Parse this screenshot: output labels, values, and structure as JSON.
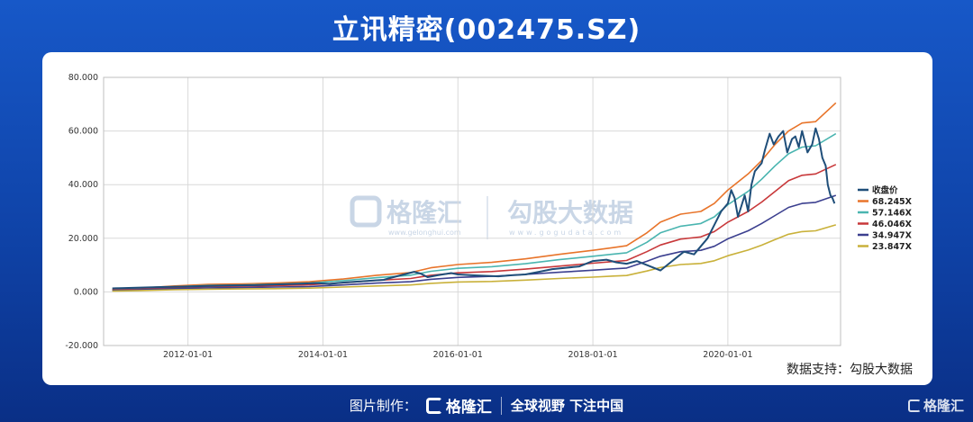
{
  "title": "立讯精密(002475.SZ)",
  "watermark": {
    "brand1": "格隆汇",
    "brand1_url": "www.gelonghui.com",
    "brand2": "勾股大数据",
    "brand2_url": "www.gogudata.com"
  },
  "support_text": "数据支持：勾股大数据",
  "footer": {
    "made_by": "图片制作：",
    "logo": "格隆汇",
    "slogan": "全球视野 下注中国"
  },
  "corner_logo": "格隆汇",
  "chart_data": {
    "type": "line",
    "xlim": [
      2010.75,
      2021.67
    ],
    "ylim": [
      -20,
      80
    ],
    "yticks": [
      -20,
      0,
      20,
      40,
      60,
      80
    ],
    "ytick_labels": [
      "-20.000",
      "0.000",
      "20.000",
      "40.000",
      "60.000",
      "80.000"
    ],
    "xticks": [
      2012.0,
      2014.0,
      2016.0,
      2018.0,
      2020.0
    ],
    "xtick_labels": [
      "2012-01-01",
      "2014-01-01",
      "2016-01-01",
      "2018-01-01",
      "2020-01-01"
    ],
    "grid": true,
    "legend_position": "right",
    "series": [
      {
        "name": "收盘价",
        "color": "#1f4e79",
        "width": 2,
        "x": [
          2010.88,
          2011.0,
          2011.3,
          2011.6,
          2012.0,
          2012.3,
          2012.6,
          2013.0,
          2013.3,
          2013.6,
          2013.9,
          2014.1,
          2014.3,
          2014.6,
          2014.9,
          2015.0,
          2015.2,
          2015.35,
          2015.45,
          2015.55,
          2015.7,
          2015.9,
          2016.0,
          2016.2,
          2016.4,
          2016.6,
          2016.8,
          2017.0,
          2017.2,
          2017.4,
          2017.6,
          2017.8,
          2017.9,
          2018.0,
          2018.2,
          2018.35,
          2018.5,
          2018.65,
          2018.8,
          2018.9,
          2019.0,
          2019.1,
          2019.25,
          2019.35,
          2019.5,
          2019.6,
          2019.7,
          2019.8,
          2019.9,
          2020.0,
          2020.05,
          2020.1,
          2020.15,
          2020.2,
          2020.25,
          2020.3,
          2020.35,
          2020.4,
          2020.5,
          2020.55,
          2020.62,
          2020.68,
          2020.75,
          2020.82,
          2020.88,
          2020.95,
          2021.0,
          2021.05,
          2021.1,
          2021.18,
          2021.25,
          2021.3,
          2021.35,
          2021.4,
          2021.45,
          2021.48,
          2021.52,
          2021.55,
          2021.58
        ],
        "y": [
          1.3,
          1.4,
          1.6,
          1.8,
          2.0,
          2.2,
          2.4,
          2.5,
          2.8,
          3.0,
          3.3,
          3.0,
          3.5,
          4.0,
          4.5,
          5.2,
          6.5,
          7.5,
          6.8,
          5.5,
          6.2,
          7.0,
          6.5,
          6.2,
          6.0,
          5.8,
          6.2,
          6.5,
          7.5,
          8.5,
          9.0,
          9.5,
          10.5,
          11.5,
          12.0,
          11.0,
          10.5,
          11.5,
          10.0,
          9.0,
          8.0,
          10.0,
          13.0,
          15.0,
          14.0,
          17.0,
          20.0,
          25.0,
          30.0,
          33.0,
          38.0,
          35.0,
          28.0,
          32.0,
          36.0,
          30.0,
          40.0,
          45.0,
          48.0,
          53.0,
          59.0,
          55.0,
          58.0,
          60.0,
          52.0,
          57.0,
          58.0,
          54.0,
          60.0,
          52.0,
          55.0,
          61.0,
          57.0,
          50.0,
          47.0,
          40.0,
          36.0,
          35.0,
          33.0
        ]
      },
      {
        "name": "68.245X",
        "color": "#e8742a",
        "width": 1.6,
        "x": [
          2010.88,
          2011.3,
          2011.8,
          2012.3,
          2012.8,
          2013.3,
          2013.8,
          2014.3,
          2014.8,
          2015.3,
          2015.6,
          2016.0,
          2016.5,
          2017.0,
          2017.5,
          2018.0,
          2018.3,
          2018.5,
          2018.8,
          2019.0,
          2019.3,
          2019.6,
          2019.8,
          2020.0,
          2020.3,
          2020.5,
          2020.7,
          2020.9,
          2021.1,
          2021.3,
          2021.6
        ],
        "y": [
          1.0,
          1.4,
          2.2,
          2.8,
          3.0,
          3.3,
          3.8,
          4.8,
          6.2,
          7.2,
          9.0,
          10.2,
          11.0,
          12.3,
          14.0,
          15.5,
          16.5,
          17.2,
          22.0,
          26.0,
          29.0,
          30.0,
          33.0,
          38.0,
          44.0,
          49.0,
          55.0,
          60.0,
          63.0,
          63.5,
          70.5
        ]
      },
      {
        "name": "57.146X",
        "color": "#4ab5b0",
        "width": 1.6,
        "x": [
          2010.88,
          2011.3,
          2011.8,
          2012.3,
          2012.8,
          2013.3,
          2013.8,
          2014.3,
          2014.8,
          2015.3,
          2015.6,
          2016.0,
          2016.5,
          2017.0,
          2017.5,
          2018.0,
          2018.3,
          2018.5,
          2018.8,
          2019.0,
          2019.3,
          2019.6,
          2019.8,
          2020.0,
          2020.3,
          2020.5,
          2020.7,
          2020.9,
          2021.1,
          2021.3,
          2021.6
        ],
        "y": [
          0.9,
          1.2,
          1.9,
          2.4,
          2.6,
          2.9,
          3.3,
          4.2,
          5.3,
          6.2,
          7.7,
          8.8,
          9.4,
          10.5,
          12.0,
          13.3,
          14.1,
          14.6,
          18.5,
          22.0,
          24.5,
          25.5,
          28.0,
          32.5,
          37.5,
          42.0,
          47.0,
          51.5,
          54.0,
          54.5,
          59.0
        ]
      },
      {
        "name": "46.046X",
        "color": "#c8383a",
        "width": 1.6,
        "x": [
          2010.88,
          2011.3,
          2011.8,
          2012.3,
          2012.8,
          2013.3,
          2013.8,
          2014.3,
          2014.8,
          2015.3,
          2015.6,
          2016.0,
          2016.5,
          2017.0,
          2017.5,
          2018.0,
          2018.3,
          2018.5,
          2018.8,
          2019.0,
          2019.3,
          2019.6,
          2019.8,
          2020.0,
          2020.3,
          2020.5,
          2020.7,
          2020.9,
          2021.1,
          2021.3,
          2021.6
        ],
        "y": [
          0.7,
          1.0,
          1.6,
          2.0,
          2.1,
          2.3,
          2.7,
          3.4,
          4.3,
          5.0,
          6.2,
          7.1,
          7.6,
          8.5,
          9.6,
          10.7,
          11.3,
          11.7,
          15.0,
          17.5,
          19.7,
          20.5,
          22.5,
          26.0,
          30.0,
          33.5,
          37.5,
          41.5,
          43.5,
          44.0,
          47.5
        ]
      },
      {
        "name": "34.947X",
        "color": "#3b3f8f",
        "width": 1.6,
        "x": [
          2010.88,
          2011.3,
          2011.8,
          2012.3,
          2012.8,
          2013.3,
          2013.8,
          2014.3,
          2014.8,
          2015.3,
          2015.6,
          2016.0,
          2016.5,
          2017.0,
          2017.5,
          2018.0,
          2018.3,
          2018.5,
          2018.8,
          2019.0,
          2019.3,
          2019.6,
          2019.8,
          2020.0,
          2020.3,
          2020.5,
          2020.7,
          2020.9,
          2021.1,
          2021.3,
          2021.6
        ],
        "y": [
          0.5,
          0.8,
          1.2,
          1.5,
          1.6,
          1.8,
          2.0,
          2.6,
          3.3,
          3.8,
          4.7,
          5.4,
          5.8,
          6.5,
          7.3,
          8.1,
          8.6,
          8.9,
          11.4,
          13.3,
          15.0,
          15.5,
          17.0,
          19.8,
          22.8,
          25.5,
          28.5,
          31.5,
          33.0,
          33.4,
          36.0
        ]
      },
      {
        "name": "23.847X",
        "color": "#c9b13a",
        "width": 1.6,
        "x": [
          2010.88,
          2011.3,
          2011.8,
          2012.3,
          2012.8,
          2013.3,
          2013.8,
          2014.3,
          2014.8,
          2015.3,
          2015.6,
          2016.0,
          2016.5,
          2017.0,
          2017.5,
          2018.0,
          2018.3,
          2018.5,
          2018.8,
          2019.0,
          2019.3,
          2019.6,
          2019.8,
          2020.0,
          2020.3,
          2020.5,
          2020.7,
          2020.9,
          2021.1,
          2021.3,
          2021.6
        ],
        "y": [
          0.3,
          0.5,
          0.8,
          1.0,
          1.1,
          1.2,
          1.4,
          1.8,
          2.2,
          2.6,
          3.2,
          3.7,
          3.9,
          4.4,
          5.0,
          5.5,
          5.9,
          6.1,
          7.8,
          9.1,
          10.2,
          10.6,
          11.6,
          13.5,
          15.6,
          17.4,
          19.5,
          21.5,
          22.5,
          22.8,
          25.0
        ]
      }
    ]
  }
}
